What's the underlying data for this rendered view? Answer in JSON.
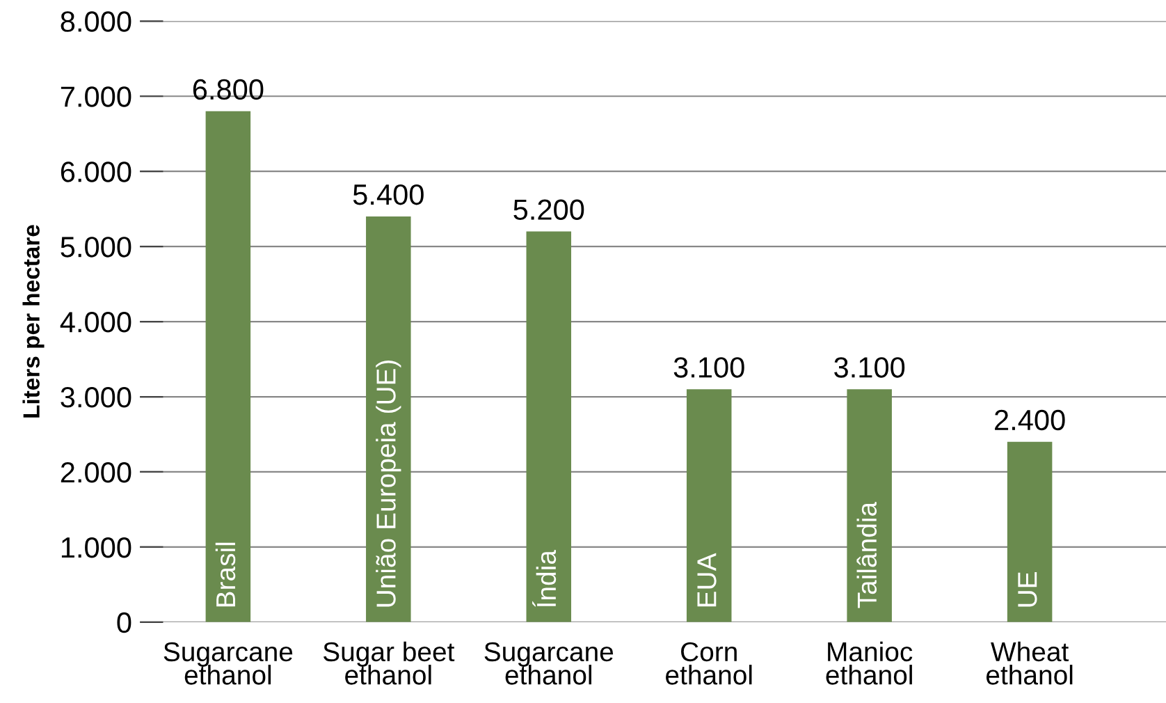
{
  "chart_data": {
    "type": "bar",
    "ylabel": "Liters per hectare",
    "categories": [
      "Sugarcane\nethanol",
      "Sugar beet\nethanol",
      "Sugarcane\nethanol",
      "Corn\nethanol",
      "Manioc\nethanol",
      "Wheat\nethanol"
    ],
    "values": [
      6800,
      5400,
      5200,
      3100,
      3100,
      2400
    ],
    "value_labels": [
      "6.800",
      "5.400",
      "5.200",
      "3.100",
      "3.100",
      "2.400"
    ],
    "color": "#6a8b4e",
    "annotations": [
      "Brasil",
      "União Europeia (UE)",
      "Índia",
      "EUA",
      "Tailândia",
      "UE"
    ],
    "ylim": [
      0,
      8000
    ],
    "yticks": [
      {
        "value": 0,
        "label": "0"
      },
      {
        "value": 1000,
        "label": "1.000"
      },
      {
        "value": 2000,
        "label": "2.000"
      },
      {
        "value": 3000,
        "label": "3.000"
      },
      {
        "value": 4000,
        "label": "4.000"
      },
      {
        "value": 5000,
        "label": "5.000"
      },
      {
        "value": 6000,
        "label": "6.000"
      },
      {
        "value": 7000,
        "label": "7.000"
      },
      {
        "value": 8000,
        "label": "8.000"
      }
    ],
    "grid": "y"
  }
}
